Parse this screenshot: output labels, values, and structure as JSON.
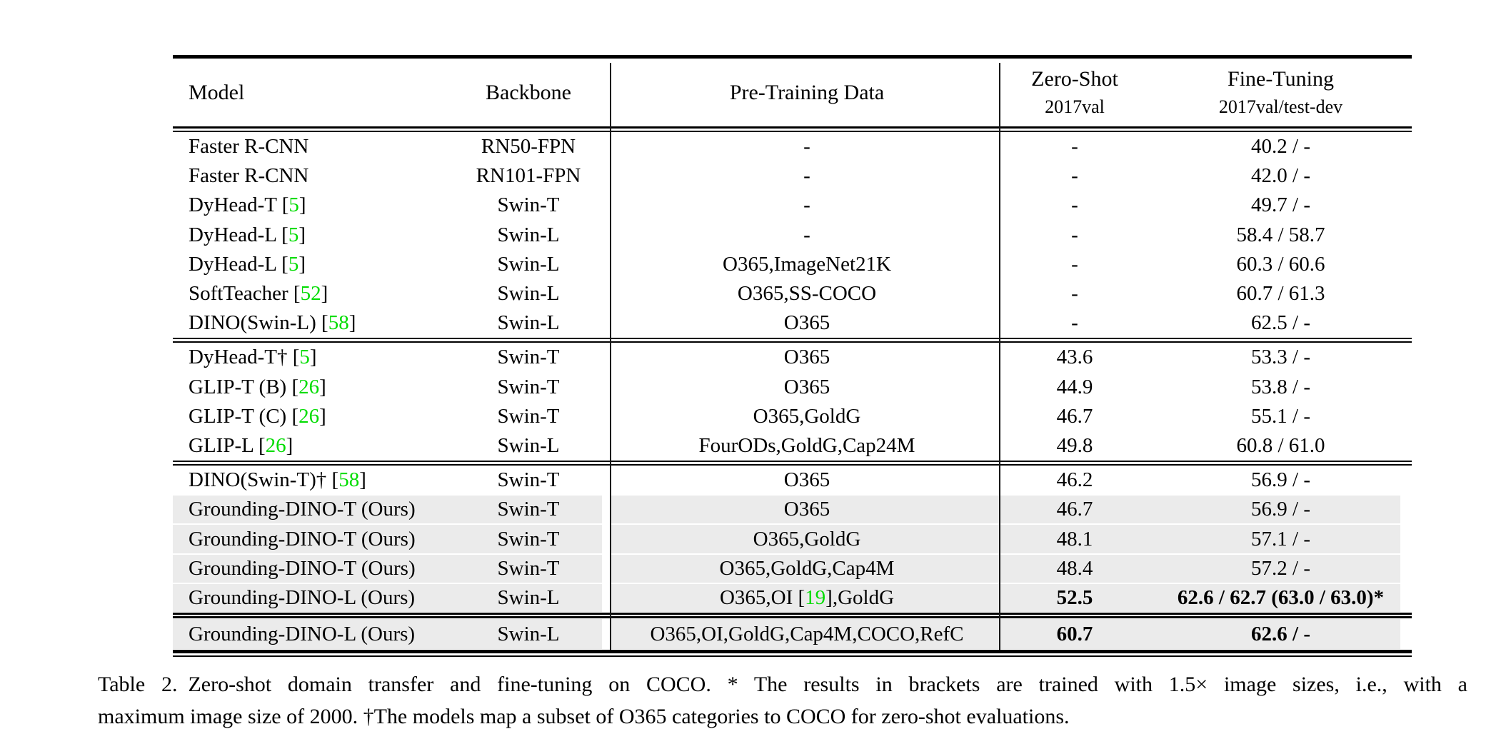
{
  "colors": {
    "citation_green": "#00dc00",
    "row_highlight": "#ebebeb",
    "rule_black": "#000000",
    "divider_gray": "#161616"
  },
  "table": {
    "header": {
      "model": "Model",
      "backbone": "Backbone",
      "pretraining": "Pre-Training Data",
      "zeroshot_title": "Zero-Shot",
      "zeroshot_sub": "2017val",
      "finetuning_title": "Fine-Tuning",
      "finetuning_sub": "2017val/test-dev"
    },
    "groups": [
      {
        "rows": [
          {
            "model": [
              {
                "t": "Faster R-CNN"
              }
            ],
            "backbone": "RN50-FPN",
            "pretrain": [
              {
                "t": "-"
              }
            ],
            "zeroshot": "-",
            "finetune": "40.2 / -"
          },
          {
            "model": [
              {
                "t": "Faster R-CNN"
              }
            ],
            "backbone": "RN101-FPN",
            "pretrain": [
              {
                "t": "-"
              }
            ],
            "zeroshot": "-",
            "finetune": "42.0 / -"
          },
          {
            "model": [
              {
                "t": "DyHead-T ["
              },
              {
                "t": "5",
                "g": true
              },
              {
                "t": "]"
              }
            ],
            "backbone": "Swin-T",
            "pretrain": [
              {
                "t": "-"
              }
            ],
            "zeroshot": "-",
            "finetune": "49.7 / -"
          },
          {
            "model": [
              {
                "t": "DyHead-L ["
              },
              {
                "t": "5",
                "g": true
              },
              {
                "t": "]"
              }
            ],
            "backbone": "Swin-L",
            "pretrain": [
              {
                "t": "-"
              }
            ],
            "zeroshot": "-",
            "finetune": "58.4 / 58.7"
          },
          {
            "model": [
              {
                "t": "DyHead-L ["
              },
              {
                "t": "5",
                "g": true
              },
              {
                "t": "]"
              }
            ],
            "backbone": "Swin-L",
            "pretrain": [
              {
                "t": "O365,ImageNet21K"
              }
            ],
            "zeroshot": "-",
            "finetune": "60.3 / 60.6"
          },
          {
            "model": [
              {
                "t": "SoftTeacher ["
              },
              {
                "t": "52",
                "g": true
              },
              {
                "t": "]"
              }
            ],
            "backbone": "Swin-L",
            "pretrain": [
              {
                "t": "O365,SS-COCO"
              }
            ],
            "zeroshot": "-",
            "finetune": "60.7 / 61.3"
          },
          {
            "model": [
              {
                "t": "DINO(Swin-L) ["
              },
              {
                "t": "58",
                "g": true
              },
              {
                "t": "]"
              }
            ],
            "backbone": "Swin-L",
            "pretrain": [
              {
                "t": "O365"
              }
            ],
            "zeroshot": "-",
            "finetune": "62.5 / -"
          }
        ]
      },
      {
        "rows": [
          {
            "model": [
              {
                "t": "DyHead-T† ["
              },
              {
                "t": "5",
                "g": true
              },
              {
                "t": "]"
              }
            ],
            "backbone": "Swin-T",
            "pretrain": [
              {
                "t": "O365"
              }
            ],
            "zeroshot": "43.6",
            "finetune": "53.3 / -"
          },
          {
            "model": [
              {
                "t": "GLIP-T (B) ["
              },
              {
                "t": "26",
                "g": true
              },
              {
                "t": "]"
              }
            ],
            "backbone": "Swin-T",
            "pretrain": [
              {
                "t": "O365"
              }
            ],
            "zeroshot": "44.9",
            "finetune": "53.8 / -"
          },
          {
            "model": [
              {
                "t": "GLIP-T (C) ["
              },
              {
                "t": "26",
                "g": true
              },
              {
                "t": "]"
              }
            ],
            "backbone": "Swin-T",
            "pretrain": [
              {
                "t": "O365,GoldG"
              }
            ],
            "zeroshot": "46.7",
            "finetune": "55.1 / -"
          },
          {
            "model": [
              {
                "t": "GLIP-L ["
              },
              {
                "t": "26",
                "g": true
              },
              {
                "t": "]"
              }
            ],
            "backbone": "Swin-L",
            "pretrain": [
              {
                "t": "FourODs,GoldG,Cap24M"
              }
            ],
            "zeroshot": "49.8",
            "finetune": "60.8 / 61.0"
          }
        ]
      },
      {
        "rows": [
          {
            "model": [
              {
                "t": "DINO(Swin-T)† ["
              },
              {
                "t": "58",
                "g": true
              },
              {
                "t": "]"
              }
            ],
            "backbone": "Swin-T",
            "pretrain": [
              {
                "t": "O365"
              }
            ],
            "zeroshot": "46.2",
            "finetune": "56.9 / -"
          },
          {
            "model": [
              {
                "t": "Grounding-DINO-T (Ours)"
              }
            ],
            "backbone": "Swin-T",
            "pretrain": [
              {
                "t": "O365"
              }
            ],
            "zeroshot": "46.7",
            "finetune": "56.9 / -",
            "highlight": true
          },
          {
            "model": [
              {
                "t": "Grounding-DINO-T (Ours)"
              }
            ],
            "backbone": "Swin-T",
            "pretrain": [
              {
                "t": "O365,GoldG"
              }
            ],
            "zeroshot": "48.1",
            "finetune": "57.1 / -",
            "highlight": true
          },
          {
            "model": [
              {
                "t": "Grounding-DINO-T (Ours)"
              }
            ],
            "backbone": "Swin-T",
            "pretrain": [
              {
                "t": "O365,GoldG,Cap4M"
              }
            ],
            "zeroshot": "48.4",
            "finetune": "57.2 / -",
            "highlight": true
          },
          {
            "model": [
              {
                "t": "Grounding-DINO-L (Ours)"
              }
            ],
            "backbone": "Swin-L",
            "pretrain": [
              {
                "t": "O365,OI ["
              },
              {
                "t": "19",
                "g": true
              },
              {
                "t": "],GoldG"
              }
            ],
            "zeroshot": "52.5",
            "finetune": "62.6 / 62.7 (63.0 / 63.0)*",
            "highlight": true,
            "bold": true
          }
        ]
      },
      {
        "rows": [
          {
            "model": [
              {
                "t": "Grounding-DINO-L (Ours)"
              }
            ],
            "backbone": "Swin-L",
            "pretrain": [
              {
                "t": "O365,OI,GoldG,Cap4M,COCO,RefC"
              }
            ],
            "zeroshot": "60.7",
            "finetune": "62.6 / -",
            "highlight": true,
            "bold": true,
            "tall": true
          }
        ]
      }
    ]
  },
  "caption": {
    "line1": "Table 2. Zero-shot domain transfer and fine-tuning on COCO. * The results in brackets are trained with 1.5× image sizes, i.e., with a",
    "line2": "maximum image size of 2000. †The models map a subset of O365 categories to COCO for zero-shot evaluations."
  }
}
